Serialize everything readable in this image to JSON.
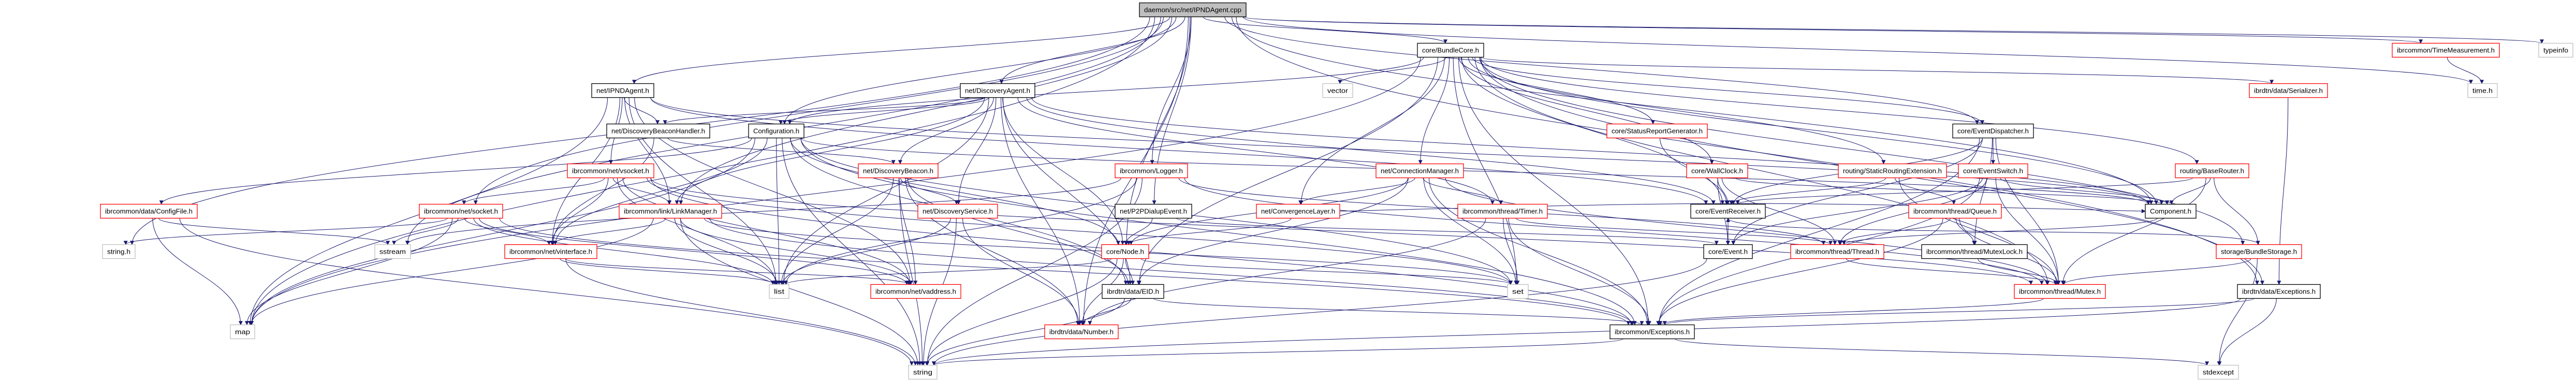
{
  "diagram": {
    "type": "include-dependency-graph",
    "colors": {
      "edge": "#191970",
      "root_fill": "#bfbfbf",
      "documented_border": "#000000",
      "truncated_border": "#ff0000",
      "external_border": "#bfbfbf",
      "node_fill": "#ffffff"
    },
    "nodes": [
      {
        "id": "root",
        "label": "daemon/src/net/IPNDAgent.cpp",
        "kind": "root"
      },
      {
        "id": "BundleCore",
        "label": "core/BundleCore.h",
        "kind": "documented"
      },
      {
        "id": "TimeMeasurement",
        "label": "ibrcommon/TimeMeasurement.h",
        "kind": "truncated"
      },
      {
        "id": "typeinfo",
        "label": "typeinfo",
        "kind": "external"
      },
      {
        "id": "IPNDAgentH",
        "label": "net/IPNDAgent.h",
        "kind": "documented"
      },
      {
        "id": "DiscoveryAgent",
        "label": "net/DiscoveryAgent.h",
        "kind": "documented"
      },
      {
        "id": "vector",
        "label": "vector",
        "kind": "external"
      },
      {
        "id": "Serializer",
        "label": "ibrdtn/data/Serializer.h",
        "kind": "truncated"
      },
      {
        "id": "timeh",
        "label": "time.h",
        "kind": "external"
      },
      {
        "id": "DiscoveryBeaconHandler",
        "label": "net/DiscoveryBeaconHandler.h",
        "kind": "documented"
      },
      {
        "id": "Configuration",
        "label": "Configuration.h",
        "kind": "documented"
      },
      {
        "id": "StatusReportGenerator",
        "label": "core/StatusReportGenerator.h",
        "kind": "truncated"
      },
      {
        "id": "EventDispatcher",
        "label": "core/EventDispatcher.h",
        "kind": "documented"
      },
      {
        "id": "vsocket",
        "label": "ibrcommon/net/vsocket.h",
        "kind": "truncated"
      },
      {
        "id": "DiscoveryBeacon",
        "label": "net/DiscoveryBeacon.h",
        "kind": "truncated"
      },
      {
        "id": "Logger",
        "label": "ibrcommon/Logger.h",
        "kind": "truncated"
      },
      {
        "id": "ConnectionManager",
        "label": "net/ConnectionManager.h",
        "kind": "truncated"
      },
      {
        "id": "WallClock",
        "label": "core/WallClock.h",
        "kind": "truncated"
      },
      {
        "id": "StaticRoutingExtension",
        "label": "routing/StaticRoutingExtension.h",
        "kind": "truncated"
      },
      {
        "id": "EventSwitch",
        "label": "core/EventSwitch.h",
        "kind": "truncated"
      },
      {
        "id": "BaseRouter",
        "label": "routing/BaseRouter.h",
        "kind": "truncated"
      },
      {
        "id": "ConfigFile",
        "label": "ibrcommon/data/ConfigFile.h",
        "kind": "truncated"
      },
      {
        "id": "socket",
        "label": "ibrcommon/net/socket.h",
        "kind": "truncated"
      },
      {
        "id": "LinkManager",
        "label": "ibrcommon/link/LinkManager.h",
        "kind": "truncated"
      },
      {
        "id": "DiscoveryService",
        "label": "net/DiscoveryService.h",
        "kind": "truncated"
      },
      {
        "id": "P2PDialupEvent",
        "label": "net/P2PDialupEvent.h",
        "kind": "documented"
      },
      {
        "id": "ConvergenceLayer",
        "label": "net/ConvergenceLayer.h",
        "kind": "truncated"
      },
      {
        "id": "Timer",
        "label": "ibrcommon/thread/Timer.h",
        "kind": "truncated"
      },
      {
        "id": "EventReceiver",
        "label": "core/EventReceiver.h",
        "kind": "documented"
      },
      {
        "id": "Queue",
        "label": "ibrcommon/thread/Queue.h",
        "kind": "truncated"
      },
      {
        "id": "Component",
        "label": "Component.h",
        "kind": "documented"
      },
      {
        "id": "stringh",
        "label": "string.h",
        "kind": "external"
      },
      {
        "id": "sstream",
        "label": "sstream",
        "kind": "external"
      },
      {
        "id": "vinterface",
        "label": "ibrcommon/net/vinterface.h",
        "kind": "truncated"
      },
      {
        "id": "Node",
        "label": "core/Node.h",
        "kind": "truncated"
      },
      {
        "id": "Event",
        "label": "core/Event.h",
        "kind": "documented"
      },
      {
        "id": "Thread",
        "label": "ibrcommon/thread/Thread.h",
        "kind": "truncated"
      },
      {
        "id": "MutexLock",
        "label": "ibrcommon/thread/MutexLock.h",
        "kind": "documented"
      },
      {
        "id": "BundleStorage",
        "label": "storage/BundleStorage.h",
        "kind": "truncated"
      },
      {
        "id": "list",
        "label": "list",
        "kind": "external"
      },
      {
        "id": "vaddress",
        "label": "ibrcommon/net/vaddress.h",
        "kind": "truncated"
      },
      {
        "id": "EID",
        "label": "ibrdtn/data/EID.h",
        "kind": "documented"
      },
      {
        "id": "set",
        "label": "set",
        "kind": "external"
      },
      {
        "id": "Mutex",
        "label": "ibrcommon/thread/Mutex.h",
        "kind": "truncated"
      },
      {
        "id": "ibrdtnExceptions",
        "label": "ibrdtn/data/Exceptions.h",
        "kind": "documented"
      },
      {
        "id": "map",
        "label": "map",
        "kind": "external"
      },
      {
        "id": "Number",
        "label": "ibrdtn/data/Number.h",
        "kind": "truncated"
      },
      {
        "id": "Exceptions",
        "label": "ibrcommon/Exceptions.h",
        "kind": "documented"
      },
      {
        "id": "string",
        "label": "string",
        "kind": "external"
      },
      {
        "id": "stdexcept",
        "label": "stdexcept",
        "kind": "external"
      }
    ],
    "edges": [
      [
        "root",
        "BundleCore"
      ],
      [
        "root",
        "IPNDAgentH"
      ],
      [
        "root",
        "Configuration"
      ],
      [
        "root",
        "DiscoveryAgent"
      ],
      [
        "root",
        "Logger"
      ],
      [
        "root",
        "P2PDialupEvent"
      ],
      [
        "root",
        "socket"
      ],
      [
        "root",
        "LinkManager"
      ],
      [
        "root",
        "TimeMeasurement"
      ],
      [
        "root",
        "typeinfo"
      ],
      [
        "root",
        "timeh"
      ],
      [
        "root",
        "stringh"
      ],
      [
        "root",
        "ibrdtnExceptions"
      ],
      [
        "root",
        "Node"
      ],
      [
        "root",
        "Number"
      ],
      [
        "root",
        "sstream"
      ],
      [
        "root",
        "map"
      ],
      [
        "root",
        "EventDispatcher"
      ],
      [
        "root",
        "Component"
      ],
      [
        "BundleCore",
        "vector"
      ],
      [
        "BundleCore",
        "ConnectionManager"
      ],
      [
        "BundleCore",
        "ConvergenceLayer"
      ],
      [
        "BundleCore",
        "EID"
      ],
      [
        "BundleCore",
        "StatusReportGenerator"
      ],
      [
        "BundleCore",
        "WallClock"
      ],
      [
        "BundleCore",
        "EventReceiver"
      ],
      [
        "BundleCore",
        "Component"
      ],
      [
        "BundleCore",
        "BaseRouter"
      ],
      [
        "BundleCore",
        "BundleStorage"
      ],
      [
        "BundleCore",
        "Serializer"
      ],
      [
        "BundleCore",
        "Exceptions"
      ],
      [
        "BundleCore",
        "set"
      ],
      [
        "BundleCore",
        "EventDispatcher"
      ],
      [
        "BundleCore",
        "Configuration"
      ],
      [
        "BundleCore",
        "StaticRoutingExtension"
      ],
      [
        "BundleCore",
        "Mutex"
      ],
      [
        "BundleCore",
        "map"
      ],
      [
        "BundleCore",
        "ibrdtnExceptions"
      ],
      [
        "IPNDAgentH",
        "DiscoveryBeaconHandler"
      ],
      [
        "IPNDAgentH",
        "vsocket"
      ],
      [
        "IPNDAgentH",
        "LinkManager"
      ],
      [
        "IPNDAgentH",
        "Component"
      ],
      [
        "IPNDAgentH",
        "vaddress"
      ],
      [
        "IPNDAgentH",
        "list"
      ],
      [
        "IPNDAgentH",
        "map"
      ],
      [
        "IPNDAgentH",
        "vinterface"
      ],
      [
        "IPNDAgentH",
        "EventReceiver"
      ],
      [
        "DiscoveryAgent",
        "DiscoveryBeaconHandler"
      ],
      [
        "DiscoveryAgent",
        "Configuration"
      ],
      [
        "DiscoveryAgent",
        "DiscoveryBeacon"
      ],
      [
        "DiscoveryAgent",
        "DiscoveryService"
      ],
      [
        "DiscoveryAgent",
        "Node"
      ],
      [
        "DiscoveryAgent",
        "EID"
      ],
      [
        "DiscoveryAgent",
        "Component"
      ],
      [
        "DiscoveryAgent",
        "LinkManager"
      ],
      [
        "DiscoveryAgent",
        "EventReceiver"
      ],
      [
        "DiscoveryAgent",
        "Timer"
      ],
      [
        "DiscoveryAgent",
        "list"
      ],
      [
        "DiscoveryAgent",
        "Number"
      ],
      [
        "DiscoveryBeaconHandler",
        "DiscoveryBeacon"
      ],
      [
        "DiscoveryBeaconHandler",
        "vinterface"
      ],
      [
        "Configuration",
        "ConfigFile"
      ],
      [
        "Configuration",
        "vinterface"
      ],
      [
        "Configuration",
        "Node"
      ],
      [
        "Configuration",
        "EID"
      ],
      [
        "Configuration",
        "Exceptions"
      ],
      [
        "Configuration",
        "set"
      ],
      [
        "Configuration",
        "map"
      ],
      [
        "Configuration",
        "string"
      ],
      [
        "Configuration",
        "list"
      ],
      [
        "Configuration",
        "Component"
      ],
      [
        "vsocket",
        "LinkManager"
      ],
      [
        "vsocket",
        "vinterface"
      ],
      [
        "vsocket",
        "vaddress"
      ],
      [
        "vsocket",
        "socket"
      ],
      [
        "vsocket",
        "list"
      ],
      [
        "vsocket",
        "set"
      ],
      [
        "vsocket",
        "Mutex"
      ],
      [
        "vsocket",
        "Exceptions"
      ],
      [
        "DiscoveryBeacon",
        "DiscoveryService"
      ],
      [
        "DiscoveryBeacon",
        "EID"
      ],
      [
        "DiscoveryBeacon",
        "list"
      ],
      [
        "DiscoveryBeacon",
        "string"
      ],
      [
        "DiscoveryBeacon",
        "Number"
      ],
      [
        "DiscoveryBeacon",
        "vaddress"
      ],
      [
        "LinkManager",
        "vinterface"
      ],
      [
        "LinkManager",
        "vaddress"
      ],
      [
        "LinkManager",
        "list"
      ],
      [
        "LinkManager",
        "string"
      ],
      [
        "LinkManager",
        "set"
      ],
      [
        "LinkManager",
        "map"
      ],
      [
        "LinkManager",
        "Exceptions"
      ],
      [
        "DiscoveryService",
        "string"
      ],
      [
        "DiscoveryService",
        "Number"
      ],
      [
        "DiscoveryService",
        "list"
      ],
      [
        "vinterface",
        "list"
      ],
      [
        "vinterface",
        "string"
      ],
      [
        "vinterface",
        "vaddress"
      ],
      [
        "socket",
        "sstream"
      ],
      [
        "socket",
        "stringh"
      ],
      [
        "socket",
        "vaddress"
      ],
      [
        "socket",
        "vinterface"
      ],
      [
        "socket",
        "Exceptions"
      ],
      [
        "socket",
        "list"
      ],
      [
        "socket",
        "map"
      ],
      [
        "ConfigFile",
        "sstream"
      ],
      [
        "ConfigFile",
        "map"
      ],
      [
        "ConfigFile",
        "string"
      ],
      [
        "Logger",
        "string"
      ],
      [
        "Logger",
        "Thread"
      ],
      [
        "Logger",
        "Mutex"
      ],
      [
        "Logger",
        "list"
      ],
      [
        "Logger",
        "sstream"
      ],
      [
        "ConnectionManager",
        "ConvergenceLayer"
      ],
      [
        "ConnectionManager",
        "Node"
      ],
      [
        "ConnectionManager",
        "EID"
      ],
      [
        "ConnectionManager",
        "set"
      ],
      [
        "ConnectionManager",
        "Exceptions"
      ],
      [
        "ConnectionManager",
        "Mutex"
      ],
      [
        "ConnectionManager",
        "Timer"
      ],
      [
        "ConvergenceLayer",
        "Node"
      ],
      [
        "ConvergenceLayer",
        "Component"
      ],
      [
        "Timer",
        "set"
      ],
      [
        "Timer",
        "Thread"
      ],
      [
        "Timer",
        "Exceptions"
      ],
      [
        "Timer",
        "Number"
      ],
      [
        "Node",
        "EID"
      ],
      [
        "Node",
        "Number"
      ],
      [
        "Node",
        "list"
      ],
      [
        "Node",
        "string"
      ],
      [
        "Node",
        "set"
      ],
      [
        "EID",
        "Number"
      ],
      [
        "EID",
        "string"
      ],
      [
        "EID",
        "Exceptions"
      ],
      [
        "P2PDialupEvent",
        "Event"
      ],
      [
        "P2PDialupEvent",
        "Node"
      ],
      [
        "StatusReportGenerator",
        "EventReceiver"
      ],
      [
        "WallClock",
        "EventReceiver"
      ],
      [
        "WallClock",
        "Thread"
      ],
      [
        "WallClock",
        "Component"
      ],
      [
        "WallClock",
        "Event"
      ],
      [
        "StaticRoutingExtension",
        "EventReceiver"
      ],
      [
        "StaticRoutingExtension",
        "Queue"
      ],
      [
        "StaticRoutingExtension",
        "Mutex"
      ],
      [
        "EventDispatcher",
        "EventSwitch"
      ],
      [
        "EventDispatcher",
        "EventReceiver"
      ],
      [
        "EventDispatcher",
        "Event"
      ],
      [
        "EventDispatcher",
        "MutexLock"
      ],
      [
        "EventDispatcher",
        "Mutex"
      ],
      [
        "EventDispatcher",
        "Exceptions"
      ],
      [
        "EventSwitch",
        "Event"
      ],
      [
        "EventSwitch",
        "Component"
      ],
      [
        "EventSwitch",
        "Thread"
      ],
      [
        "EventSwitch",
        "Mutex"
      ],
      [
        "EventSwitch",
        "Exceptions"
      ],
      [
        "EventReceiver",
        "Event"
      ],
      [
        "Queue",
        "Thread"
      ],
      [
        "Queue",
        "MutexLock"
      ],
      [
        "Queue",
        "Exceptions"
      ],
      [
        "Queue",
        "Mutex"
      ],
      [
        "Event",
        "string"
      ],
      [
        "Thread",
        "Mutex"
      ],
      [
        "MutexLock",
        "Mutex"
      ],
      [
        "Mutex",
        "Exceptions"
      ],
      [
        "Exceptions",
        "string"
      ],
      [
        "Exceptions",
        "stdexcept"
      ],
      [
        "TimeMeasurement",
        "timeh"
      ],
      [
        "Serializer",
        "ibrdtnExceptions"
      ],
      [
        "BaseRouter",
        "Component"
      ],
      [
        "BaseRouter",
        "BundleStorage"
      ],
      [
        "BaseRouter",
        "Mutex"
      ],
      [
        "BaseRouter",
        "EventReceiver"
      ],
      [
        "Component",
        "Thread"
      ],
      [
        "BundleStorage",
        "stdexcept"
      ],
      [
        "BundleStorage",
        "Mutex"
      ],
      [
        "BundleStorage",
        "EventReceiver"
      ],
      [
        "ibrdtnExceptions",
        "Exceptions"
      ],
      [
        "ibrdtnExceptions",
        "stdexcept"
      ],
      [
        "ibrdtnExceptions",
        "string"
      ]
    ]
  }
}
